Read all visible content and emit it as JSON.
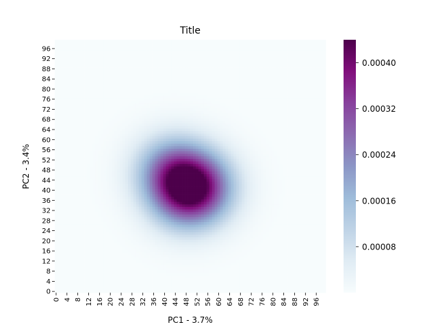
{
  "chart_data": {
    "type": "heatmap",
    "title": "Title",
    "xlabel": "PC1 - 3.7%",
    "ylabel": "PC2 - 3.4%",
    "grid_size": 100,
    "x_ticks": [
      0,
      4,
      8,
      12,
      16,
      20,
      24,
      28,
      32,
      36,
      40,
      44,
      48,
      52,
      56,
      60,
      64,
      68,
      72,
      76,
      80,
      84,
      88,
      92,
      96
    ],
    "y_ticks": [
      0,
      4,
      8,
      12,
      16,
      20,
      24,
      28,
      32,
      36,
      40,
      44,
      48,
      52,
      56,
      60,
      64,
      68,
      72,
      76,
      80,
      84,
      88,
      92,
      96
    ],
    "colorbar": {
      "vmin": 0.0,
      "vmax": 0.00044,
      "ticks": [
        8e-05,
        0.00016,
        0.00024,
        0.00032,
        0.0004
      ],
      "tick_labels": [
        "0.00008",
        "0.00016",
        "0.00024",
        "0.00032",
        "0.00040"
      ],
      "colormap": "BuPu",
      "colors": [
        "#f7fcfd",
        "#e0ecf4",
        "#bfd3e6",
        "#9ebcda",
        "#8c96c6",
        "#8c6bb1",
        "#88419d",
        "#810f7c",
        "#4d004b"
      ]
    },
    "density_peaks": [
      {
        "x": 43,
        "y": 48,
        "value": 0.00044
      },
      {
        "x": 53,
        "y": 42,
        "value": 0.00043
      },
      {
        "x": 48,
        "y": 37,
        "value": 0.0004
      }
    ]
  }
}
